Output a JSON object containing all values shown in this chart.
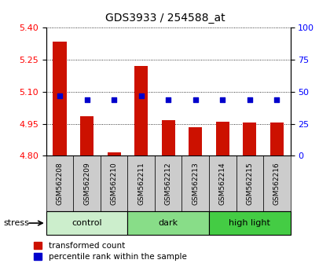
{
  "title": "GDS3933 / 254588_at",
  "samples": [
    "GSM562208",
    "GSM562209",
    "GSM562210",
    "GSM562211",
    "GSM562212",
    "GSM562213",
    "GSM562214",
    "GSM562215",
    "GSM562216"
  ],
  "red_values": [
    5.335,
    4.985,
    4.815,
    5.22,
    4.965,
    4.935,
    4.96,
    4.955,
    4.955
  ],
  "blue_percentiles": [
    47,
    44,
    44,
    47,
    44,
    44,
    44,
    44,
    44
  ],
  "groups": [
    {
      "label": "control",
      "start": 0,
      "end": 3,
      "color": "#cceecc"
    },
    {
      "label": "dark",
      "start": 3,
      "end": 6,
      "color": "#88dd88"
    },
    {
      "label": "high light",
      "start": 6,
      "end": 9,
      "color": "#44cc44"
    }
  ],
  "ylim_left": [
    4.8,
    5.4
  ],
  "ylim_right": [
    0,
    100
  ],
  "yticks_left": [
    4.8,
    4.95,
    5.1,
    5.25,
    5.4
  ],
  "yticks_right": [
    0,
    25,
    50,
    75,
    100
  ],
  "bar_color": "#cc1100",
  "dot_color": "#0000cc",
  "bar_width": 0.5,
  "bar_base": 4.8,
  "legend_red": "transformed count",
  "legend_blue": "percentile rank within the sample",
  "stress_label": "stress"
}
